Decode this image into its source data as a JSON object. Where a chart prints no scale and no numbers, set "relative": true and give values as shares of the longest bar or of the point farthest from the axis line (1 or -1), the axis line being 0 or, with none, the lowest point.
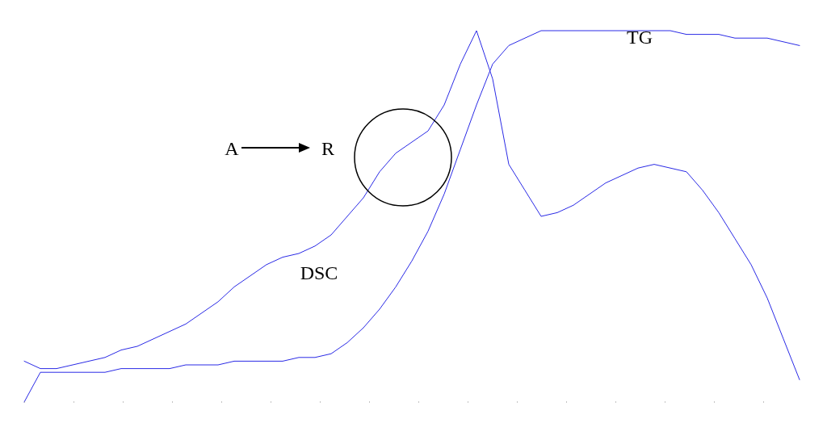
{
  "chart_data": {
    "type": "line",
    "relative": true,
    "categories": [
      null,
      null,
      null,
      null,
      null,
      null,
      null,
      null,
      null,
      null,
      null,
      null,
      null,
      null,
      null,
      null,
      null,
      null,
      null,
      null,
      null,
      null,
      null,
      null,
      null,
      null,
      null,
      null,
      null,
      null,
      null,
      null,
      null,
      null,
      null,
      null,
      null,
      null,
      null,
      null,
      null,
      null,
      null,
      null,
      null,
      null,
      null,
      null,
      null
    ],
    "series": [
      {
        "name": "DSC",
        "color": "#2a2ae6",
        "values": [
          0.11,
          0.09,
          0.09,
          0.1,
          0.11,
          0.12,
          0.14,
          0.15,
          0.17,
          0.19,
          0.21,
          0.24,
          0.27,
          0.31,
          0.34,
          0.37,
          0.39,
          0.4,
          0.42,
          0.45,
          0.5,
          0.55,
          0.62,
          0.67,
          0.7,
          0.73,
          0.8,
          0.91,
          1,
          0.87,
          0.64,
          0.57,
          0.5,
          0.51,
          0.53,
          0.56,
          0.59,
          0.61,
          0.63,
          0.64,
          0.63,
          0.62,
          0.57,
          0.51,
          0.44,
          0.37,
          0.28,
          0.17,
          0.06
        ]
      },
      {
        "name": "TG",
        "color": "#2a2ae6",
        "values": [
          0,
          0.08,
          0.08,
          0.08,
          0.08,
          0.08,
          0.09,
          0.09,
          0.09,
          0.09,
          0.1,
          0.1,
          0.1,
          0.11,
          0.11,
          0.11,
          0.11,
          0.12,
          0.12,
          0.13,
          0.16,
          0.2,
          0.25,
          0.31,
          0.38,
          0.46,
          0.56,
          0.68,
          0.8,
          0.91,
          0.96,
          0.98,
          1,
          1,
          1,
          1,
          1,
          1,
          1,
          1,
          1,
          0.99,
          0.99,
          0.99,
          0.98,
          0.98,
          0.98,
          0.97,
          0.96
        ]
      }
    ],
    "annotations": [
      "A",
      "R"
    ]
  }
}
